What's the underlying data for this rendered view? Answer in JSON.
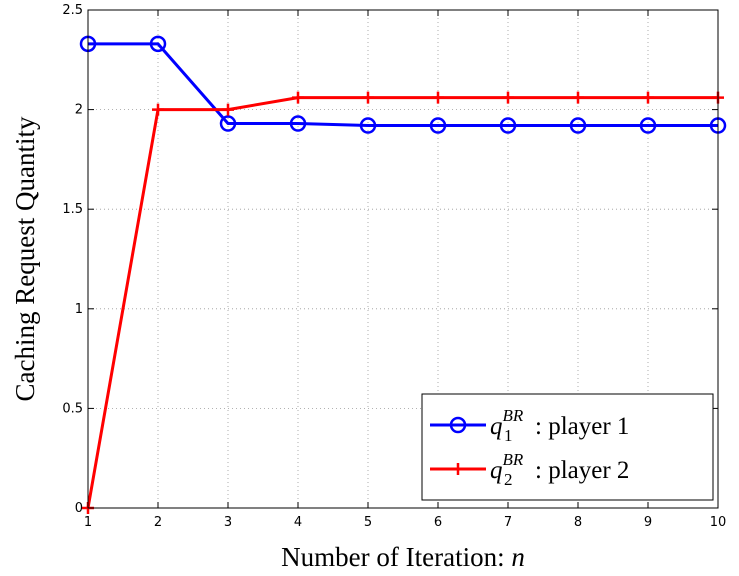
{
  "chart_data": {
    "type": "line",
    "xlabel": "Number of Iteration: ",
    "xlabel_var": "n",
    "ylabel": "Caching Request Quantity",
    "x": [
      1,
      2,
      3,
      4,
      5,
      6,
      7,
      8,
      9,
      10
    ],
    "xlim": [
      1,
      10
    ],
    "ylim": [
      0,
      2.5
    ],
    "xticks": [
      "1",
      "2",
      "3",
      "4",
      "5",
      "6",
      "7",
      "8",
      "9",
      "10"
    ],
    "yticks": [
      {
        "value": 0,
        "label": "0"
      },
      {
        "value": 0.5,
        "label": "0.5"
      },
      {
        "value": 1,
        "label": "1"
      },
      {
        "value": 1.5,
        "label": "1.5"
      },
      {
        "value": 2,
        "label": "2"
      },
      {
        "value": 2.5,
        "label": "2.5"
      }
    ],
    "grid": true,
    "legend_position": "bottom-right",
    "series": [
      {
        "name": "player 1",
        "symbol": "q",
        "subscript": "1",
        "superscript": "BR",
        "suffix": ":  player 1",
        "color": "#0000ff",
        "marker": "circle",
        "values": [
          2.33,
          2.33,
          1.93,
          1.93,
          1.92,
          1.92,
          1.92,
          1.92,
          1.92,
          1.92
        ]
      },
      {
        "name": "player 2",
        "symbol": "q",
        "subscript": "2",
        "superscript": "BR",
        "suffix": ":  player 2",
        "color": "#ff0000",
        "marker": "plus",
        "values": [
          0,
          2.0,
          2.0,
          2.06,
          2.06,
          2.06,
          2.06,
          2.06,
          2.06,
          2.06
        ]
      }
    ]
  }
}
